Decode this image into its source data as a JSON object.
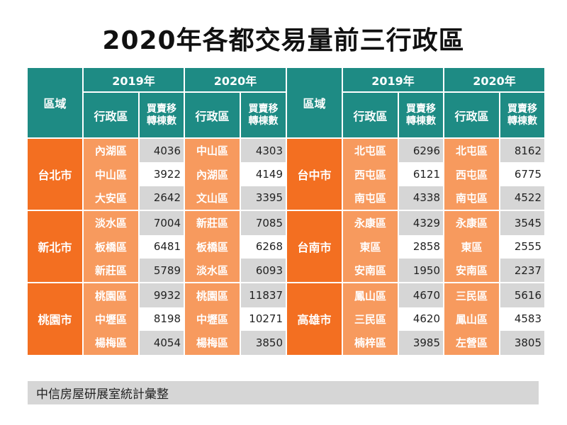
{
  "title": "2020年各都交易量前三行政區",
  "headers": {
    "region": "區域",
    "year_2019": "2019年",
    "year_2020": "2020年",
    "district": "行政區",
    "transfers_line1": "買賣移",
    "transfers_line2": "轉棟數"
  },
  "left_groups": [
    {
      "city": "台北市",
      "rows": [
        {
          "d2019": "內湖區",
          "v2019": "4036",
          "d2020": "中山區",
          "v2020": "4303"
        },
        {
          "d2019": "中山區",
          "v2019": "3922",
          "d2020": "內湖區",
          "v2020": "4149"
        },
        {
          "d2019": "大安區",
          "v2019": "2642",
          "d2020": "文山區",
          "v2020": "3395"
        }
      ]
    },
    {
      "city": "新北市",
      "rows": [
        {
          "d2019": "淡水區",
          "v2019": "7004",
          "d2020": "新莊區",
          "v2020": "7085"
        },
        {
          "d2019": "板橋區",
          "v2019": "6481",
          "d2020": "板橋區",
          "v2020": "6268"
        },
        {
          "d2019": "新莊區",
          "v2019": "5789",
          "d2020": "淡水區",
          "v2020": "6093"
        }
      ]
    },
    {
      "city": "桃園市",
      "rows": [
        {
          "d2019": "桃園區",
          "v2019": "9932",
          "d2020": "桃園區",
          "v2020": "11837"
        },
        {
          "d2019": "中壢區",
          "v2019": "8198",
          "d2020": "中壢區",
          "v2020": "10271"
        },
        {
          "d2019": "楊梅區",
          "v2019": "4054",
          "d2020": "楊梅區",
          "v2020": "3850"
        }
      ]
    }
  ],
  "right_groups": [
    {
      "city": "台中市",
      "rows": [
        {
          "d2019": "北屯區",
          "v2019": "6296",
          "d2020": "北屯區",
          "v2020": "8162"
        },
        {
          "d2019": "西屯區",
          "v2019": "6121",
          "d2020": "西屯區",
          "v2020": "6775"
        },
        {
          "d2019": "南屯區",
          "v2019": "4338",
          "d2020": "南屯區",
          "v2020": "4522"
        }
      ]
    },
    {
      "city": "台南市",
      "rows": [
        {
          "d2019": "永康區",
          "v2019": "4329",
          "d2020": "永康區",
          "v2020": "3545"
        },
        {
          "d2019": "東區",
          "v2019": "2858",
          "d2020": "東區",
          "v2020": "2555"
        },
        {
          "d2019": "安南區",
          "v2019": "1950",
          "d2020": "安南區",
          "v2020": "2237"
        }
      ]
    },
    {
      "city": "高雄市",
      "rows": [
        {
          "d2019": "鳳山區",
          "v2019": "4670",
          "d2020": "三民區",
          "v2020": "5616"
        },
        {
          "d2019": "三民區",
          "v2019": "4620",
          "d2020": "鳳山區",
          "v2020": "4583"
        },
        {
          "d2019": "楠梓區",
          "v2019": "3985",
          "d2020": "左營區",
          "v2020": "3805"
        }
      ]
    }
  ],
  "footer": "中信房屋研展室統計彙整",
  "colors": {
    "header_teal": "#1e8b84",
    "region_orange": "#f36f21",
    "district_orange": "#f79a5e",
    "row_gray": "#d6d6d6"
  }
}
